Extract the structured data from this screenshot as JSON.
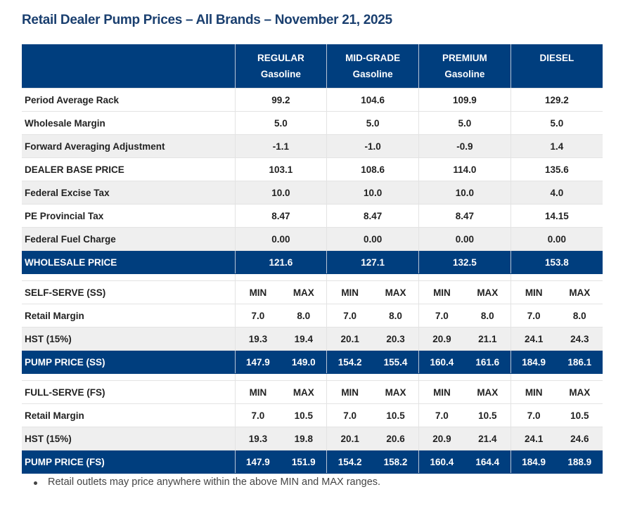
{
  "title": "Retail Dealer Pump Prices – All Brands – November 21, 2025",
  "columns": [
    {
      "name": "REGULAR",
      "sub": "Gasoline"
    },
    {
      "name": "MID-GRADE",
      "sub": "Gasoline"
    },
    {
      "name": "PREMIUM",
      "sub": "Gasoline"
    },
    {
      "name": "DIESEL",
      "sub": ""
    }
  ],
  "wholesale_rows": [
    {
      "label": "Period Average Rack",
      "values": [
        "99.2",
        "104.6",
        "109.9",
        "129.2"
      ],
      "style": "white"
    },
    {
      "label": "Wholesale Margin",
      "values": [
        "5.0",
        "5.0",
        "5.0",
        "5.0"
      ],
      "style": "white"
    },
    {
      "label": "Forward Averaging Adjustment",
      "values": [
        "-1.1",
        "-1.0",
        "-0.9",
        "1.4"
      ],
      "style": "gray"
    },
    {
      "label": "DEALER BASE PRICE",
      "values": [
        "103.1",
        "108.6",
        "114.0",
        "135.6"
      ],
      "style": "white"
    },
    {
      "label": "Federal Excise Tax",
      "values": [
        "10.0",
        "10.0",
        "10.0",
        "4.0"
      ],
      "style": "gray"
    },
    {
      "label": "PE Provincial Tax",
      "values": [
        "8.47",
        "8.47",
        "8.47",
        "14.15"
      ],
      "style": "white"
    },
    {
      "label": "Federal Fuel Charge",
      "values": [
        "0.00",
        "0.00",
        "0.00",
        "0.00"
      ],
      "style": "gray"
    },
    {
      "label": "WHOLESALE PRICE",
      "values": [
        "121.6",
        "127.1",
        "132.5",
        "153.8"
      ],
      "style": "navy"
    }
  ],
  "sections": [
    {
      "header": "SELF-SERVE (SS)",
      "min_label": "MIN",
      "max_label": "MAX",
      "rows": [
        {
          "label": "Retail Margin",
          "values": [
            "7.0",
            "8.0",
            "7.0",
            "8.0",
            "7.0",
            "8.0",
            "7.0",
            "8.0"
          ],
          "style": "white"
        },
        {
          "label": "HST (15%)",
          "values": [
            "19.3",
            "19.4",
            "20.1",
            "20.3",
            "20.9",
            "21.1",
            "24.1",
            "24.3"
          ],
          "style": "gray"
        },
        {
          "label": "PUMP PRICE (SS)",
          "values": [
            "147.9",
            "149.0",
            "154.2",
            "155.4",
            "160.4",
            "161.6",
            "184.9",
            "186.1"
          ],
          "style": "navy"
        }
      ]
    },
    {
      "header": "FULL-SERVE (FS)",
      "min_label": "MIN",
      "max_label": "MAX",
      "rows": [
        {
          "label": "Retail Margin",
          "values": [
            "7.0",
            "10.5",
            "7.0",
            "10.5",
            "7.0",
            "10.5",
            "7.0",
            "10.5"
          ],
          "style": "white"
        },
        {
          "label": "HST (15%)",
          "values": [
            "19.3",
            "19.8",
            "20.1",
            "20.6",
            "20.9",
            "21.4",
            "24.1",
            "24.6"
          ],
          "style": "gray"
        },
        {
          "label": "PUMP PRICE (FS)",
          "values": [
            "147.9",
            "151.9",
            "154.2",
            "158.2",
            "160.4",
            "164.4",
            "184.9",
            "188.9"
          ],
          "style": "navy"
        }
      ]
    }
  ],
  "note": "Retail outlets may price anywhere within the above MIN and MAX ranges."
}
